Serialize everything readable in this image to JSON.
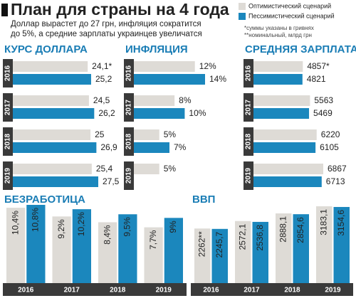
{
  "header": {
    "title": "План для страны на 4 года",
    "subtitle": [
      "Доллар вырастет до 27 грн, инфляция сократится",
      "до 5%, а средние зарплаты украинцев увеличатся"
    ],
    "notes": [
      "*суммы указаны в гривнях",
      "**номинальный, млрд грн"
    ]
  },
  "legend": [
    {
      "name": "Оптимистический сценарий",
      "color": "#dedbd6"
    },
    {
      "name": "Пессимистический сценарий",
      "color": "#1b87bd"
    }
  ],
  "chart_data": [
    {
      "type": "bar",
      "orientation": "horizontal",
      "title": "КУРС ДОЛЛАРА",
      "categories": [
        "2016",
        "2017",
        "2018",
        "2019"
      ],
      "series": [
        {
          "values": [
            24.1,
            24.5,
            25,
            25.4
          ],
          "value_labels": [
            "24,1*",
            "24,5",
            "25",
            "25,4"
          ]
        },
        {
          "values": [
            25.2,
            26.2,
            26.9,
            27.5
          ],
          "value_labels": [
            "25,2",
            "26,2",
            "26,9",
            "27,5"
          ]
        }
      ]
    },
    {
      "type": "bar",
      "orientation": "horizontal",
      "title": "ИНФЛЯЦИЯ",
      "categories": [
        "2016",
        "2017",
        "2018",
        "2019"
      ],
      "series": [
        {
          "values": [
            12,
            8,
            5,
            5
          ],
          "value_labels": [
            "12%",
            "8%",
            "5%",
            "5%"
          ]
        },
        {
          "values": [
            14,
            10,
            7,
            null
          ],
          "value_labels": [
            "14%",
            "10%",
            "7%",
            null
          ]
        }
      ]
    },
    {
      "type": "bar",
      "orientation": "horizontal",
      "title": "СРЕДНЯЯ ЗАРПЛАТА",
      "categories": [
        "2016",
        "2017",
        "2018",
        "2019"
      ],
      "series": [
        {
          "values": [
            4857,
            5563,
            6220,
            6867
          ],
          "value_labels": [
            "4857*",
            "5563",
            "6220",
            "6867"
          ]
        },
        {
          "values": [
            4821,
            5469,
            6105,
            6713
          ]
        }
      ]
    },
    {
      "type": "bar",
      "orientation": "vertical",
      "title": "БЕЗРАБОТИЦА",
      "categories": [
        "2016",
        "2017",
        "2018",
        "2019"
      ],
      "series": [
        {
          "values": [
            10.4,
            9.2,
            8.4,
            7.7
          ],
          "value_labels": [
            "10,4%",
            "9,2%",
            "8,4%",
            "7,7%"
          ]
        },
        {
          "values": [
            10.8,
            10.2,
            9.5,
            9
          ],
          "value_labels": [
            "10,8%",
            "10,2%",
            "9,5%",
            "9%"
          ]
        }
      ]
    },
    {
      "type": "bar",
      "orientation": "vertical",
      "title": "ВВП",
      "categories": [
        "2016",
        "2017",
        "2018",
        "2019"
      ],
      "series": [
        {
          "values": [
            2262,
            2572.1,
            2888.1,
            3183.1
          ],
          "value_labels": [
            "2262**",
            "2572,1",
            "2888,1",
            "3183,1"
          ]
        },
        {
          "values": [
            2245.7,
            2536.8,
            2854.6,
            3154.6
          ],
          "value_labels": [
            "2245,7",
            "2536,8",
            "2854,6",
            "3154,6"
          ]
        }
      ]
    }
  ]
}
